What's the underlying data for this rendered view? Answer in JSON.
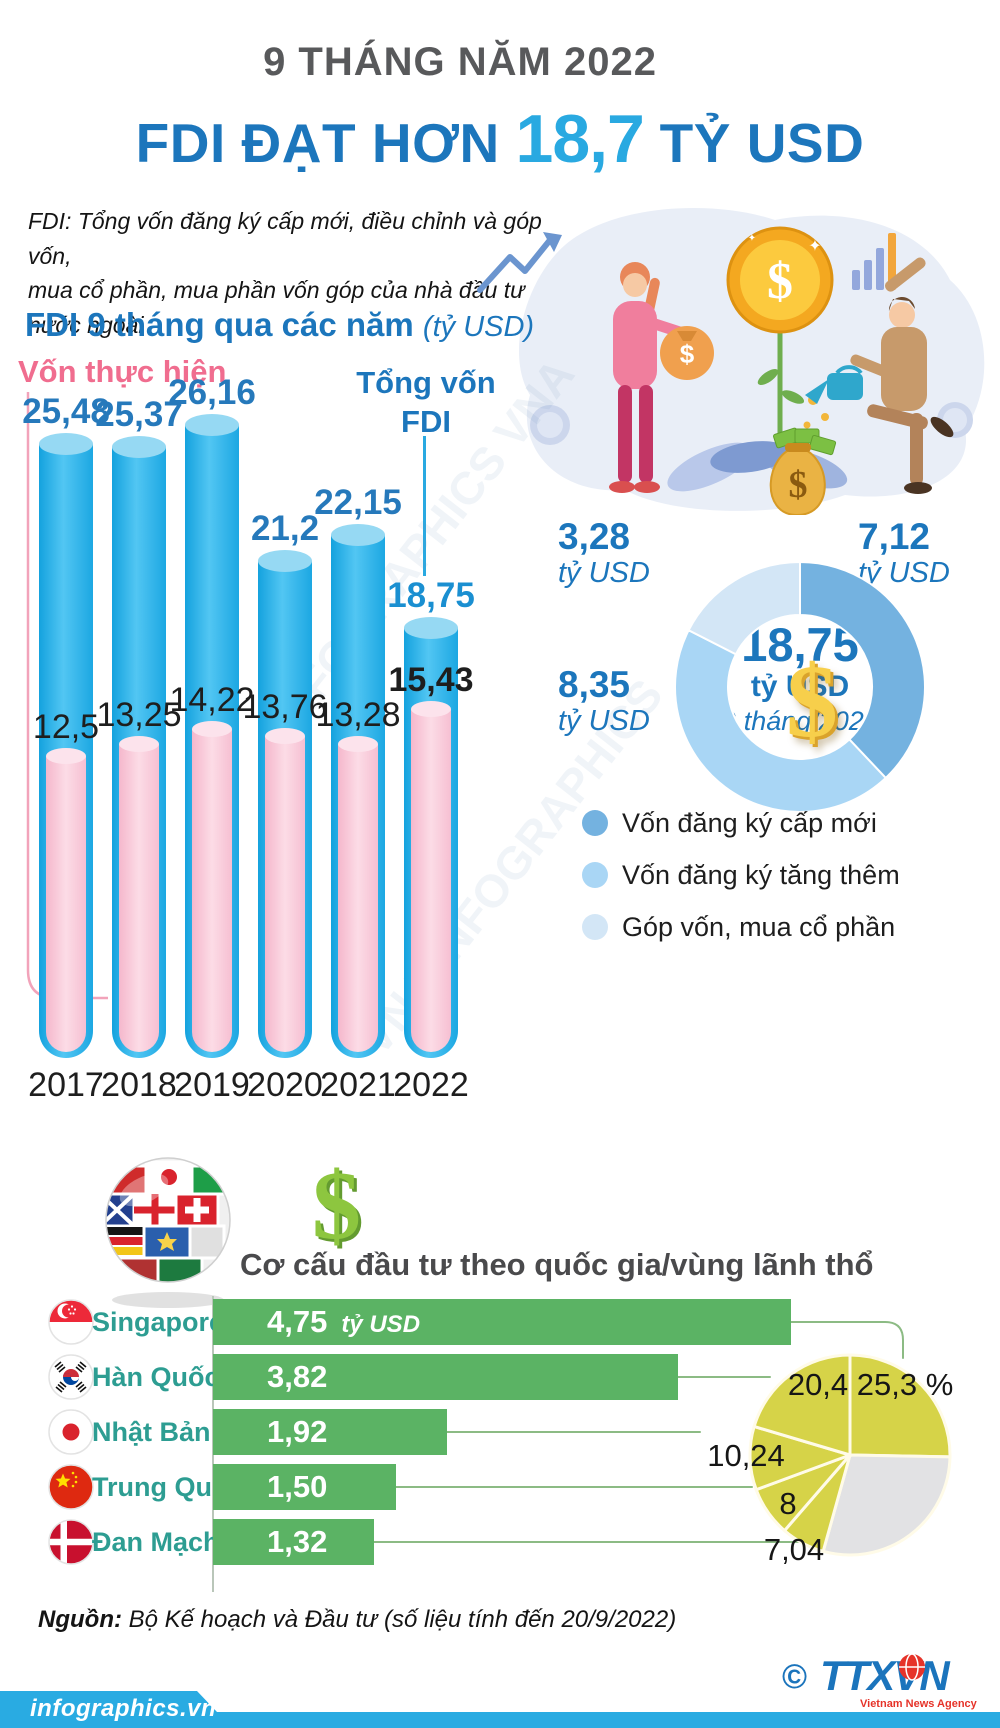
{
  "header": {
    "kicker": "9 THÁNG NĂM 2022",
    "title_prefix": "FDI ĐẠT HƠN ",
    "title_value": "18,7",
    "title_suffix": " TỶ USD"
  },
  "note": "FDI: Tổng vốn đăng ký cấp mới, điều chỉnh và góp vốn,\nmua cổ phần, mua phần vốn góp của nhà đầu tư nước ngoài",
  "bar_section": {
    "title": "FDI 9 tháng qua các năm ",
    "unit": "(tỷ USD)",
    "realized_label": "Vốn thực hiện",
    "total_label": "Tổng vốn\nFDI"
  },
  "donut_section": {
    "callouts": [
      {
        "value": "3,28",
        "unit": "tỷ USD"
      },
      {
        "value": "7,12",
        "unit": "tỷ USD"
      },
      {
        "value": "8,35",
        "unit": "tỷ USD"
      }
    ],
    "center": {
      "value": "18,75",
      "unit": "tỷ USD",
      "period": "9 tháng/2022"
    },
    "legend": [
      {
        "label": "Vốn đăng ký cấp mới",
        "color": "#74b2e0"
      },
      {
        "label": "Vốn đăng ký tăng thêm",
        "color": "#a9d6f5"
      },
      {
        "label": "Góp vốn, mua cổ phần",
        "color": "#d3e6f6"
      }
    ]
  },
  "country_section": {
    "title": "Cơ cấu đầu tư theo quốc gia/vùng lãnh thổ"
  },
  "footer": {
    "source_label": "Nguồn:",
    "source_text": " Bộ Kế hoạch và Đầu tư (số liệu tính đến 20/9/2022)",
    "site": "infographics.vn",
    "copyright": "©",
    "agency": "TTXVN",
    "agency_sub": "Vietnam News Agency"
  },
  "chart_data": [
    {
      "type": "bar",
      "title": "FDI 9 tháng qua các năm (tỷ USD)",
      "categories": [
        "2017",
        "2018",
        "2019",
        "2020",
        "2021",
        "2022"
      ],
      "series": [
        {
          "name": "Tổng vốn FDI",
          "values": [
            25.48,
            25.37,
            26.16,
            21.2,
            22.15,
            18.75
          ],
          "labels": [
            "25,48",
            "25,37",
            "26,16",
            "21,2",
            "22,15",
            "18,75"
          ]
        },
        {
          "name": "Vốn thực hiện",
          "values": [
            12.5,
            13.25,
            14.22,
            13.76,
            13.28,
            15.43
          ],
          "labels": [
            "12,5",
            "13,25",
            "14,22",
            "13,76",
            "13,28",
            "15,43"
          ]
        }
      ],
      "ylim": [
        0,
        27
      ]
    },
    {
      "type": "pie",
      "subtype": "donut",
      "title": "18,75 tỷ USD 9 tháng/2022",
      "slices": [
        {
          "label": "Vốn đăng ký cấp mới",
          "value": 7.12,
          "display": "7,12 tỷ USD",
          "color": "#74b2e0"
        },
        {
          "label": "Vốn đăng ký tăng thêm",
          "value": 8.35,
          "display": "8,35 tỷ USD",
          "color": "#a9d6f5"
        },
        {
          "label": "Góp vốn, mua cổ phần",
          "value": 3.28,
          "display": "3,28 tỷ USD",
          "color": "#d3e6f6"
        }
      ]
    },
    {
      "type": "bar",
      "orientation": "horizontal",
      "title": "Cơ cấu đầu tư theo quốc gia/vùng lãnh thổ",
      "unit": "tỷ USD",
      "categories": [
        "Singapore",
        "Hàn Quốc",
        "Nhật Bản",
        "Trung Quốc",
        "Đan Mạch"
      ],
      "values": [
        4.75,
        3.82,
        1.92,
        1.5,
        1.32
      ],
      "labels": [
        "4,75",
        "3,82",
        "1,92",
        "1,50",
        "1,32"
      ]
    },
    {
      "type": "pie",
      "title": "Cơ cấu đầu tư theo quốc gia/vùng lãnh thổ (%)",
      "slices": [
        {
          "label": "25,3 %",
          "value": 25.3,
          "color": "#d6d348"
        },
        {
          "label": "20,4",
          "value": 20.4,
          "color": "#d6d348"
        },
        {
          "label": "10,24",
          "value": 10.24,
          "color": "#d6d348"
        },
        {
          "label": "8",
          "value": 8,
          "color": "#d6d348"
        },
        {
          "label": "7,04",
          "value": 7.04,
          "color": "#d6d348"
        },
        {
          "label": "",
          "value": 29.02,
          "color": "#e2e2e4"
        }
      ]
    }
  ],
  "colors": {
    "dark_blue": "#1c76bc",
    "light_blue": "#29a9e1",
    "bar_blue": "#29b0e8",
    "bar_blue_top": "#96d9f3",
    "bar_pink": "#f8c6d7",
    "bar_pink_top": "#fce3ec",
    "pink_label": "#f06d8f",
    "green_bar": "#5bb364",
    "country_label": "#2d9d92",
    "pie_yellow": "#d6d348",
    "pie_gray": "#e2e2e4",
    "banner_blue": "#29abe2"
  }
}
